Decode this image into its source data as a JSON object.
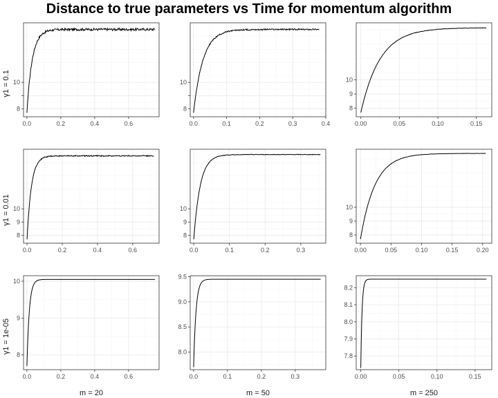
{
  "title": "Distance to true parameters vs Time for momentum algorithm",
  "row_labels": [
    "γ1 = 0.1",
    "γ1 = 0.01",
    "γ1 = 1e-05"
  ],
  "col_labels": [
    "m = 20",
    "m = 50",
    "m = 250"
  ],
  "colors": {
    "line": "#000000",
    "grid_major": "#ebebeb",
    "grid_minor": "#f5f5f5",
    "frame": "#333333"
  },
  "chart_data": [
    {
      "type": "line",
      "row": 0,
      "col": 0,
      "xlim": [
        -0.02,
        0.78
      ],
      "ylim": [
        7.4,
        14.5
      ],
      "x_ticks": [
        0.0,
        0.2,
        0.4,
        0.6
      ],
      "x_tick_labels": [
        "0.0",
        "0.2",
        "0.4",
        "0.6"
      ],
      "y_ticks": [
        8,
        9,
        10
      ],
      "y_tick_labels": [
        "8",
        "",
        "10"
      ],
      "grid": true,
      "curve": {
        "x_start": 0.0,
        "x_end": 0.755,
        "y_start": 7.7,
        "y_end": 14.0,
        "rate": 32,
        "noise": 0.09
      }
    },
    {
      "type": "line",
      "row": 0,
      "col": 1,
      "xlim": [
        -0.01,
        0.4
      ],
      "ylim": [
        7.4,
        14.5
      ],
      "x_ticks": [
        0.0,
        0.1,
        0.2,
        0.3,
        0.4
      ],
      "x_tick_labels": [
        "0.0",
        "0.1",
        "0.2",
        "0.3",
        "0.4"
      ],
      "y_ticks": [
        8,
        9,
        10
      ],
      "y_tick_labels": [
        "8",
        "",
        "10"
      ],
      "grid": true,
      "curve": {
        "x_start": 0.0,
        "x_end": 0.38,
        "y_start": 7.7,
        "y_end": 14.0,
        "rate": 35,
        "noise": 0.05
      }
    },
    {
      "type": "line",
      "row": 0,
      "col": 2,
      "xlim": [
        -0.006,
        0.17
      ],
      "ylim": [
        7.4,
        14.0
      ],
      "x_ticks": [
        0.0,
        0.05,
        0.1,
        0.15
      ],
      "x_tick_labels": [
        "0.00",
        "0.05",
        "0.10",
        "0.15"
      ],
      "y_ticks": [
        8,
        9,
        10
      ],
      "y_tick_labels": [
        "8",
        "9",
        "10"
      ],
      "grid": true,
      "curve": {
        "x_start": 0.0,
        "x_end": 0.163,
        "y_start": 7.7,
        "y_end": 13.65,
        "rate": 40,
        "noise": 0.015
      }
    },
    {
      "type": "line",
      "row": 1,
      "col": 0,
      "xlim": [
        -0.02,
        0.75
      ],
      "ylim": [
        7.4,
        14.5
      ],
      "x_ticks": [
        0.0,
        0.2,
        0.4,
        0.6
      ],
      "x_tick_labels": [
        "0.0",
        "0.2",
        "0.4",
        "0.6"
      ],
      "y_ticks": [
        8,
        9,
        10
      ],
      "y_tick_labels": [
        "8",
        "9",
        "10"
      ],
      "grid": true,
      "curve": {
        "x_start": 0.0,
        "x_end": 0.72,
        "y_start": 7.7,
        "y_end": 14.0,
        "rate": 40,
        "noise": 0.04
      }
    },
    {
      "type": "line",
      "row": 1,
      "col": 1,
      "xlim": [
        -0.01,
        0.37
      ],
      "ylim": [
        7.4,
        14.5
      ],
      "x_ticks": [
        0.0,
        0.1,
        0.2,
        0.3
      ],
      "x_tick_labels": [
        "0.0",
        "0.1",
        "0.2",
        "0.3"
      ],
      "y_ticks": [
        8,
        9,
        10
      ],
      "y_tick_labels": [
        "8",
        "9",
        "10"
      ],
      "grid": true,
      "curve": {
        "x_start": 0.0,
        "x_end": 0.355,
        "y_start": 7.7,
        "y_end": 14.1,
        "rate": 55,
        "noise": 0.02
      }
    },
    {
      "type": "line",
      "row": 1,
      "col": 2,
      "xlim": [
        -0.007,
        0.215
      ],
      "ylim": [
        7.4,
        14.2
      ],
      "x_ticks": [
        0.0,
        0.05,
        0.1,
        0.15,
        0.2
      ],
      "x_tick_labels": [
        "0.00",
        "0.05",
        "0.10",
        "0.15",
        "0.20"
      ],
      "y_ticks": [
        8,
        9,
        10
      ],
      "y_tick_labels": [
        "8",
        "9",
        "10"
      ],
      "grid": true,
      "curve": {
        "x_start": 0.0,
        "x_end": 0.205,
        "y_start": 7.7,
        "y_end": 13.9,
        "rate": 42,
        "noise": 0.01
      }
    },
    {
      "type": "line",
      "row": 2,
      "col": 0,
      "xlim": [
        -0.02,
        0.78
      ],
      "ylim": [
        7.6,
        10.15
      ],
      "x_ticks": [
        0.0,
        0.2,
        0.4,
        0.6
      ],
      "x_tick_labels": [
        "0.0",
        "0.2",
        "0.4",
        "0.6"
      ],
      "y_ticks": [
        8,
        9,
        10
      ],
      "y_tick_labels": [
        "8",
        "9",
        "10"
      ],
      "grid": true,
      "curve": {
        "x_start": 0.0,
        "x_end": 0.755,
        "y_start": 7.7,
        "y_end": 10.05,
        "rate": 70,
        "noise": 0.0
      }
    },
    {
      "type": "line",
      "row": 2,
      "col": 1,
      "xlim": [
        -0.01,
        0.39
      ],
      "ylim": [
        7.65,
        9.52
      ],
      "x_ticks": [
        0.0,
        0.1,
        0.2,
        0.3
      ],
      "x_tick_labels": [
        "0.0",
        "0.1",
        "0.2",
        "0.3"
      ],
      "y_ticks": [
        8.0,
        8.5,
        9.0,
        9.5
      ],
      "y_tick_labels": [
        "8.0",
        "8.5",
        "9.0",
        "9.5"
      ],
      "grid": true,
      "curve": {
        "x_start": 0.0,
        "x_end": 0.375,
        "y_start": 7.7,
        "y_end": 9.45,
        "rate": 140,
        "noise": 0.0
      }
    },
    {
      "type": "line",
      "row": 2,
      "col": 2,
      "xlim": [
        -0.006,
        0.172
      ],
      "ylim": [
        7.72,
        8.27
      ],
      "x_ticks": [
        0.0,
        0.05,
        0.1,
        0.15
      ],
      "x_tick_labels": [
        "0.00",
        "0.05",
        "0.10",
        "0.15"
      ],
      "y_ticks": [
        7.8,
        7.9,
        8.0,
        8.1,
        8.2
      ],
      "y_tick_labels": [
        "7.8",
        "7.9",
        "8.0",
        "8.1",
        "8.2"
      ],
      "grid": true,
      "curve": {
        "x_start": 0.0,
        "x_end": 0.165,
        "y_start": 7.73,
        "y_end": 8.25,
        "rate": 600,
        "noise": 0.0
      }
    }
  ]
}
